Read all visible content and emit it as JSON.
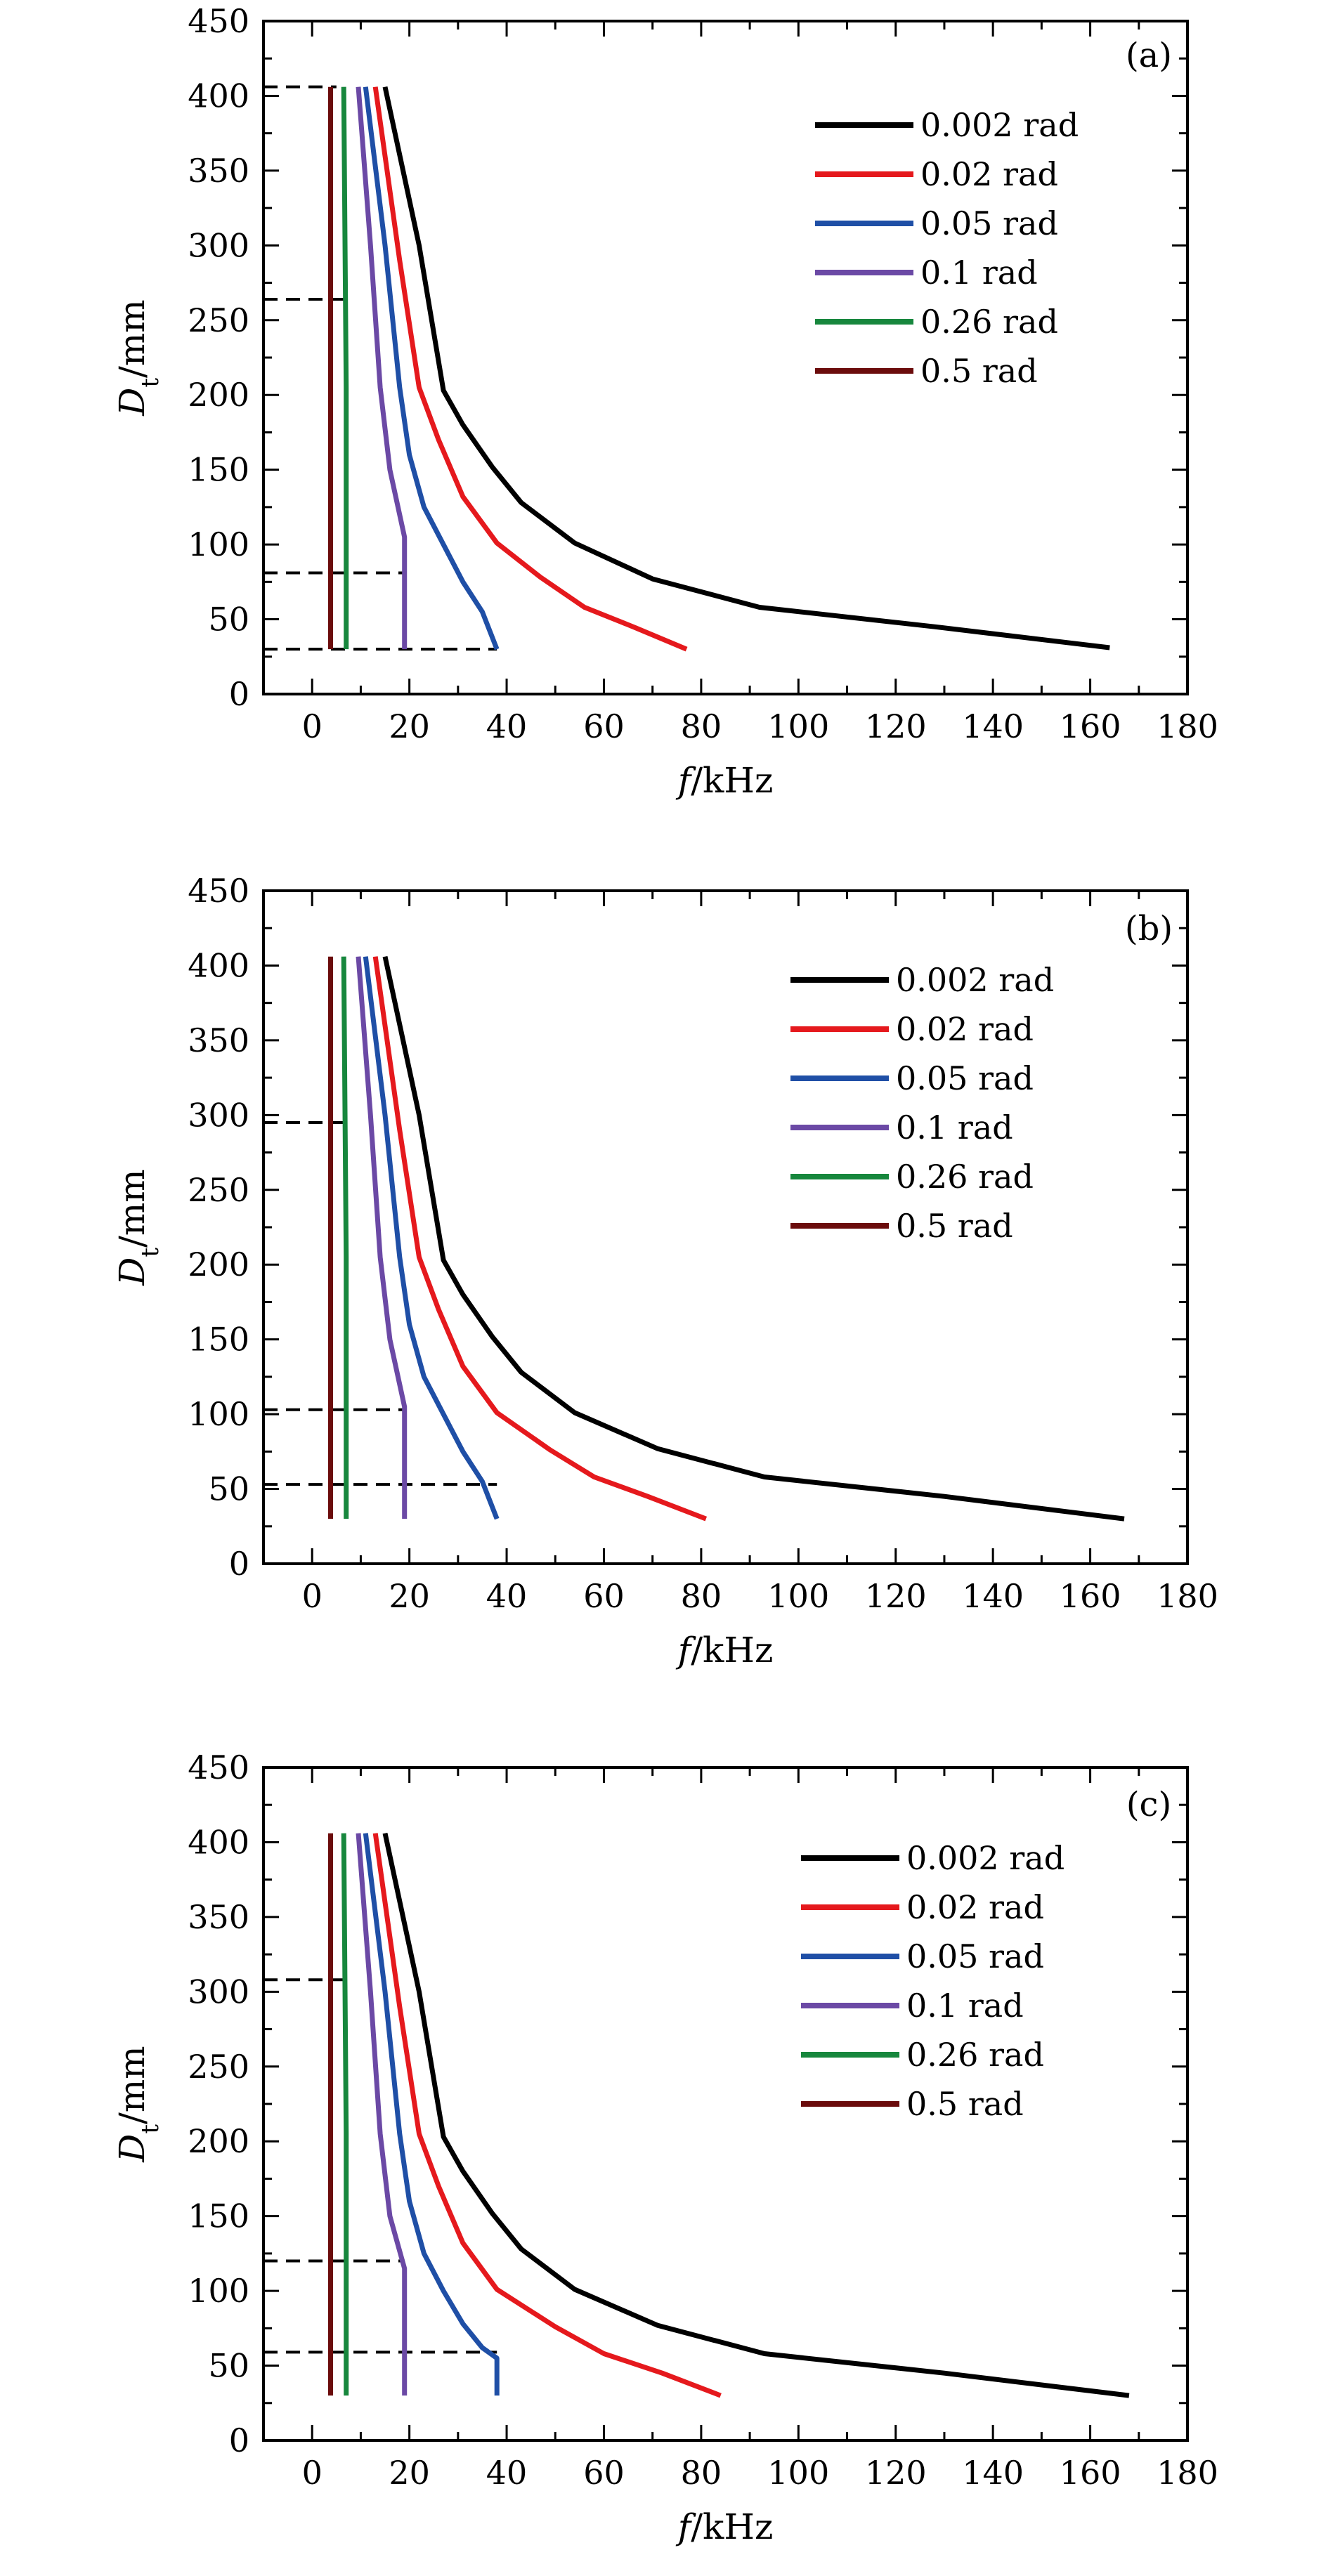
{
  "figure": {
    "colors": {
      "0.002 rad": "#000000",
      "0.02 rad": "#e5191d",
      "0.05 rad": "#1f4fa6",
      "0.1 rad": "#6b49a5",
      "0.26 rad": "#17873d",
      "0.5 rad": "#6b0c0c"
    }
  },
  "chart_data": [
    {
      "type": "line",
      "panel": "(a)",
      "xlabel_italic": "f",
      "xlabel_unit": "/kHz",
      "ylabel_italic": "D",
      "ylabel_sub": "t",
      "ylabel_unit": "/mm",
      "xlim": [
        -10,
        180
      ],
      "ylim": [
        0,
        450
      ],
      "xticks": [
        0,
        20,
        40,
        60,
        80,
        100,
        120,
        140,
        160,
        180
      ],
      "yticks": [
        0,
        50,
        100,
        150,
        200,
        250,
        300,
        350,
        400,
        450
      ],
      "series": [
        {
          "name": "0.002 rad",
          "x": [
            15,
            22,
            27,
            31,
            37,
            43,
            54,
            70,
            92,
            128,
            164
          ],
          "y": [
            406,
            300,
            203,
            180,
            152,
            128,
            101,
            77,
            58,
            45,
            31
          ]
        },
        {
          "name": "0.02 rad",
          "x": [
            13,
            18,
            22,
            26,
            31,
            38,
            47,
            56,
            66,
            77
          ],
          "y": [
            406,
            290,
            205,
            170,
            132,
            101,
            78,
            58,
            45,
            30
          ]
        },
        {
          "name": "0.05 rad",
          "x": [
            11,
            15,
            18,
            20,
            23,
            27,
            31,
            35,
            38
          ],
          "y": [
            406,
            300,
            205,
            160,
            125,
            100,
            75,
            55,
            30
          ]
        },
        {
          "name": "0.1 rad",
          "x": [
            9.5,
            12,
            14,
            16,
            19,
            19
          ],
          "y": [
            406,
            300,
            205,
            150,
            105,
            30
          ]
        },
        {
          "name": "0.26 rad",
          "x": [
            6.5,
            7,
            7
          ],
          "y": [
            406,
            205,
            30
          ]
        },
        {
          "name": "0.5 rad",
          "x": [
            3.8,
            3.8
          ],
          "y": [
            406,
            30
          ]
        }
      ],
      "dashed_lines": [
        {
          "y": 406,
          "x_end": 5
        },
        {
          "y": 264,
          "x_end": 8
        },
        {
          "y": 81,
          "x_end": 19
        },
        {
          "y": 30,
          "x_end": 38
        }
      ]
    },
    {
      "type": "line",
      "panel": "(b)",
      "xlabel_italic": "f",
      "xlabel_unit": "/kHz",
      "ylabel_italic": "D",
      "ylabel_sub": "t",
      "ylabel_unit": "/mm",
      "xlim": [
        -10,
        180
      ],
      "ylim": [
        0,
        450
      ],
      "xticks": [
        0,
        20,
        40,
        60,
        80,
        100,
        120,
        140,
        160,
        180
      ],
      "yticks": [
        0,
        50,
        100,
        150,
        200,
        250,
        300,
        350,
        400,
        450
      ],
      "series": [
        {
          "name": "0.002 rad",
          "x": [
            15,
            22,
            27,
            31,
            37,
            43,
            54,
            71,
            93,
            130,
            167
          ],
          "y": [
            406,
            300,
            203,
            180,
            152,
            128,
            101,
            77,
            58,
            45,
            30
          ]
        },
        {
          "name": "0.02 rad",
          "x": [
            13,
            18,
            22,
            26,
            31,
            38,
            49,
            58,
            69,
            81
          ],
          "y": [
            406,
            290,
            205,
            170,
            132,
            101,
            76,
            58,
            45,
            30
          ]
        },
        {
          "name": "0.05 rad",
          "x": [
            11,
            15,
            18,
            20,
            23,
            27,
            31,
            35,
            38
          ],
          "y": [
            406,
            300,
            205,
            160,
            125,
            100,
            75,
            55,
            30
          ]
        },
        {
          "name": "0.1 rad",
          "x": [
            9.5,
            12,
            14,
            16,
            19,
            19
          ],
          "y": [
            406,
            300,
            205,
            150,
            105,
            30
          ]
        },
        {
          "name": "0.26 rad",
          "x": [
            6.5,
            7,
            7
          ],
          "y": [
            406,
            205,
            30
          ]
        },
        {
          "name": "0.5 rad",
          "x": [
            3.8,
            3.8
          ],
          "y": [
            406,
            30
          ]
        }
      ],
      "dashed_lines": [
        {
          "y": 295,
          "x_end": 8
        },
        {
          "y": 103,
          "x_end": 19
        },
        {
          "y": 53,
          "x_end": 38
        }
      ]
    },
    {
      "type": "line",
      "panel": "(c)",
      "xlabel_italic": "f",
      "xlabel_unit": "/kHz",
      "ylabel_italic": "D",
      "ylabel_sub": "t",
      "ylabel_unit": "/mm",
      "xlim": [
        -10,
        180
      ],
      "ylim": [
        0,
        450
      ],
      "xticks": [
        0,
        20,
        40,
        60,
        80,
        100,
        120,
        140,
        160,
        180
      ],
      "yticks": [
        0,
        50,
        100,
        150,
        200,
        250,
        300,
        350,
        400,
        450
      ],
      "series": [
        {
          "name": "0.002 rad",
          "x": [
            15,
            22,
            27,
            31,
            37,
            43,
            54,
            71,
            93,
            130,
            168
          ],
          "y": [
            406,
            300,
            203,
            180,
            152,
            128,
            101,
            77,
            58,
            45,
            30
          ]
        },
        {
          "name": "0.02 rad",
          "x": [
            13,
            18,
            22,
            26,
            31,
            38,
            50,
            60,
            72,
            84
          ],
          "y": [
            406,
            290,
            205,
            170,
            132,
            101,
            76,
            58,
            45,
            30
          ]
        },
        {
          "name": "0.05 rad",
          "x": [
            11,
            15,
            18,
            20,
            23,
            27,
            31,
            35,
            38,
            38
          ],
          "y": [
            406,
            300,
            205,
            160,
            125,
            100,
            78,
            62,
            55,
            30
          ]
        },
        {
          "name": "0.1 rad",
          "x": [
            9.5,
            12,
            14,
            16,
            19,
            19
          ],
          "y": [
            406,
            300,
            205,
            150,
            115,
            30
          ]
        },
        {
          "name": "0.26 rad",
          "x": [
            6.5,
            7,
            7
          ],
          "y": [
            406,
            205,
            30
          ]
        },
        {
          "name": "0.5 rad",
          "x": [
            3.8,
            3.8
          ],
          "y": [
            406,
            30
          ]
        }
      ],
      "dashed_lines": [
        {
          "y": 308,
          "x_end": 8
        },
        {
          "y": 120,
          "x_end": 19
        },
        {
          "y": 59,
          "x_end": 38
        }
      ]
    }
  ]
}
